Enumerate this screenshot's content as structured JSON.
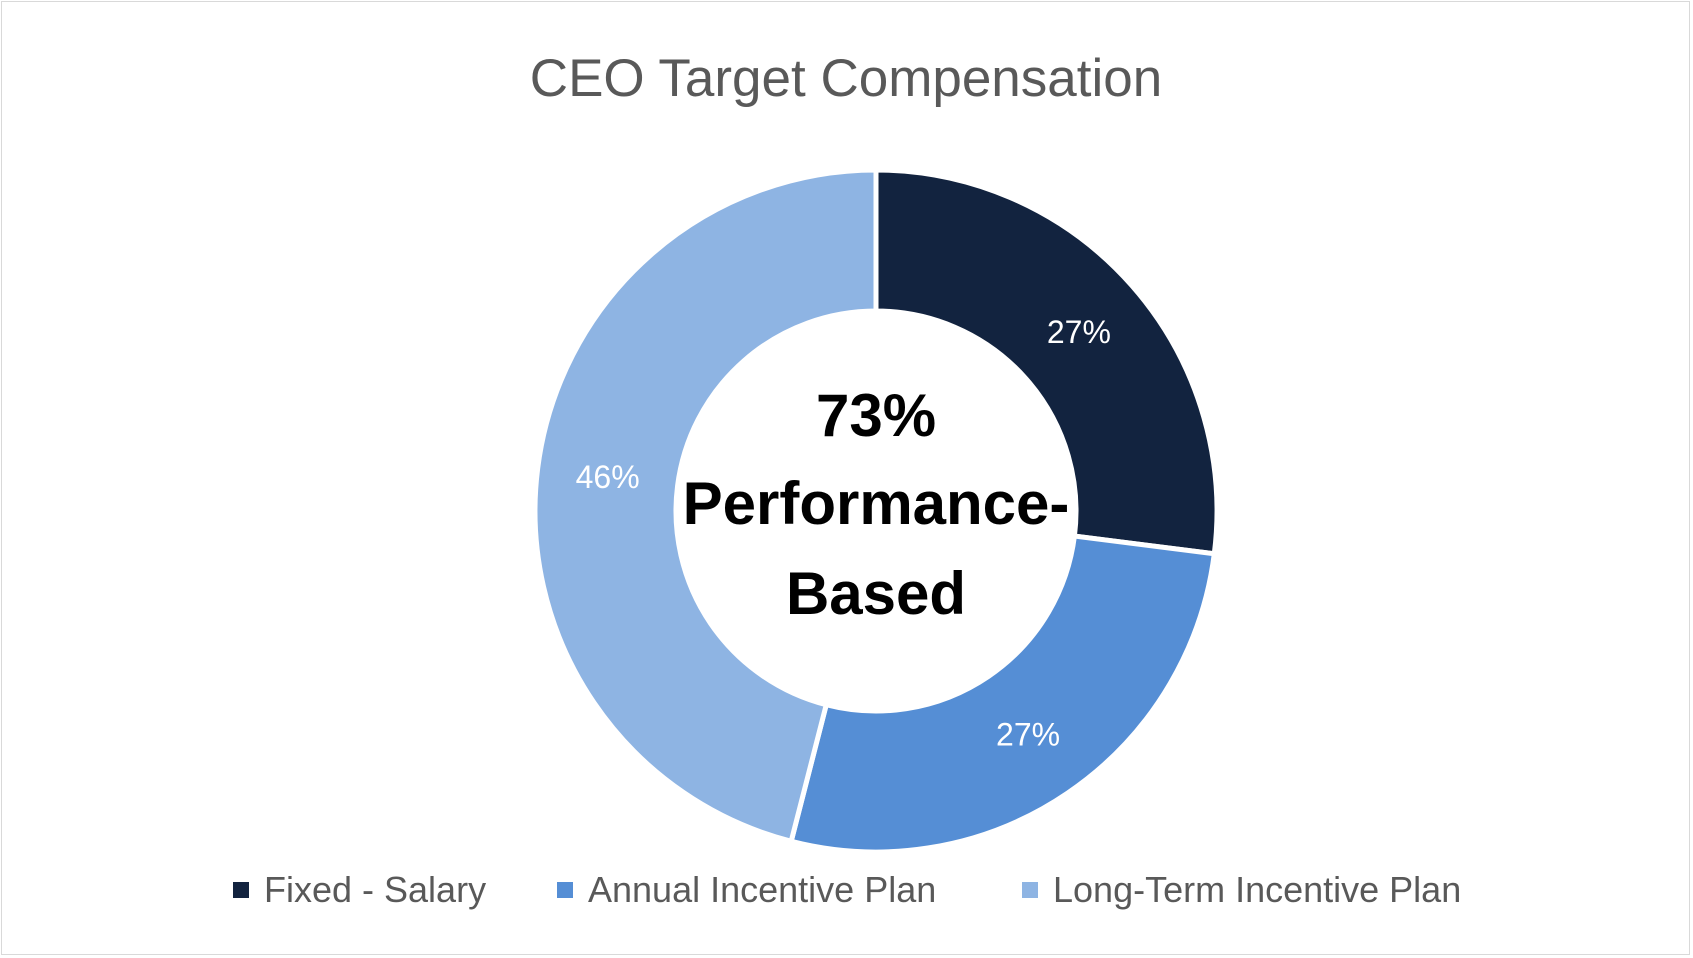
{
  "chart_data": {
    "type": "pie",
    "variant": "donut",
    "title": "CEO Target Compensation",
    "center_text": [
      "73%",
      "Performance-",
      "Based"
    ],
    "slices": [
      {
        "label": "Fixed - Salary",
        "value": 27,
        "data_label": "27%",
        "color": "#12233f"
      },
      {
        "label": "Annual Incentive Plan",
        "value": 27,
        "data_label": "27%",
        "color": "#558ed5"
      },
      {
        "label": "Long-Term Incentive Plan",
        "value": 46,
        "data_label": "46%",
        "color": "#8eb4e3"
      }
    ],
    "legend_position": "bottom"
  }
}
